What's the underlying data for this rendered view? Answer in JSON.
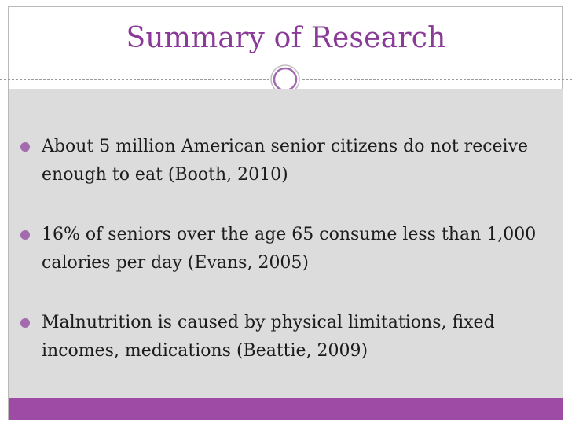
{
  "slide": {
    "title": "Summary of Research",
    "bullets": [
      {
        "text": "About 5 million American senior citizens do not receive enough to eat (Booth, 2010)"
      },
      {
        "text": "16% of seniors over the age 65 consume less than 1,000 calories per day (Evans, 2005)"
      },
      {
        "text": "Malnutrition is caused by physical limitations, fixed incomes, medications (Beattie, 2009)"
      }
    ],
    "colors": {
      "title": "#8a3a97",
      "accent_bar": "#9e4ba6",
      "content_bg": "#dcdcdc",
      "bullet": "#a36ab0"
    }
  }
}
